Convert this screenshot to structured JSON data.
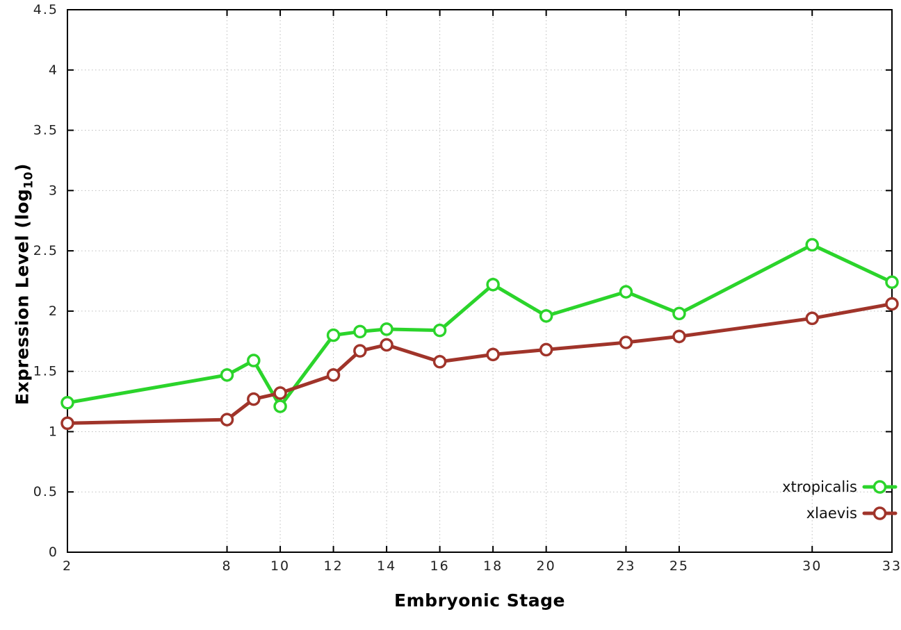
{
  "chart_data": {
    "type": "line",
    "title": "",
    "xlabel": "Embryonic Stage",
    "ylabel": "Expression Level (log10)",
    "ylabel_parts": {
      "pre": "Expression Level (log",
      "sub": "10",
      "post": ")"
    },
    "xlim": [
      2,
      33
    ],
    "ylim": [
      0,
      4.5
    ],
    "ytick_step": 0.5,
    "xticks": [
      2,
      8,
      10,
      12,
      14,
      16,
      18,
      20,
      23,
      25,
      30,
      33
    ],
    "x": [
      2,
      8,
      9,
      10,
      12,
      13,
      14,
      16,
      18,
      20,
      23,
      25,
      30,
      33
    ],
    "grid": true,
    "legend_position": "bottom-right",
    "series": [
      {
        "name": "xtropicalis",
        "color": "#2bd42b",
        "values": [
          1.24,
          1.47,
          1.59,
          1.21,
          1.8,
          1.83,
          1.85,
          1.84,
          2.22,
          1.96,
          2.16,
          1.98,
          2.55,
          2.24
        ]
      },
      {
        "name": "xlaevis",
        "color": "#a0342a",
        "values": [
          1.07,
          1.1,
          1.27,
          1.32,
          1.47,
          1.67,
          1.72,
          1.58,
          1.64,
          1.68,
          1.74,
          1.79,
          1.94,
          2.06
        ]
      }
    ],
    "colors": {
      "grid": "#bdbdbd",
      "border": "#000000",
      "tick_label": "#222222",
      "legend_text": "#111111"
    }
  }
}
